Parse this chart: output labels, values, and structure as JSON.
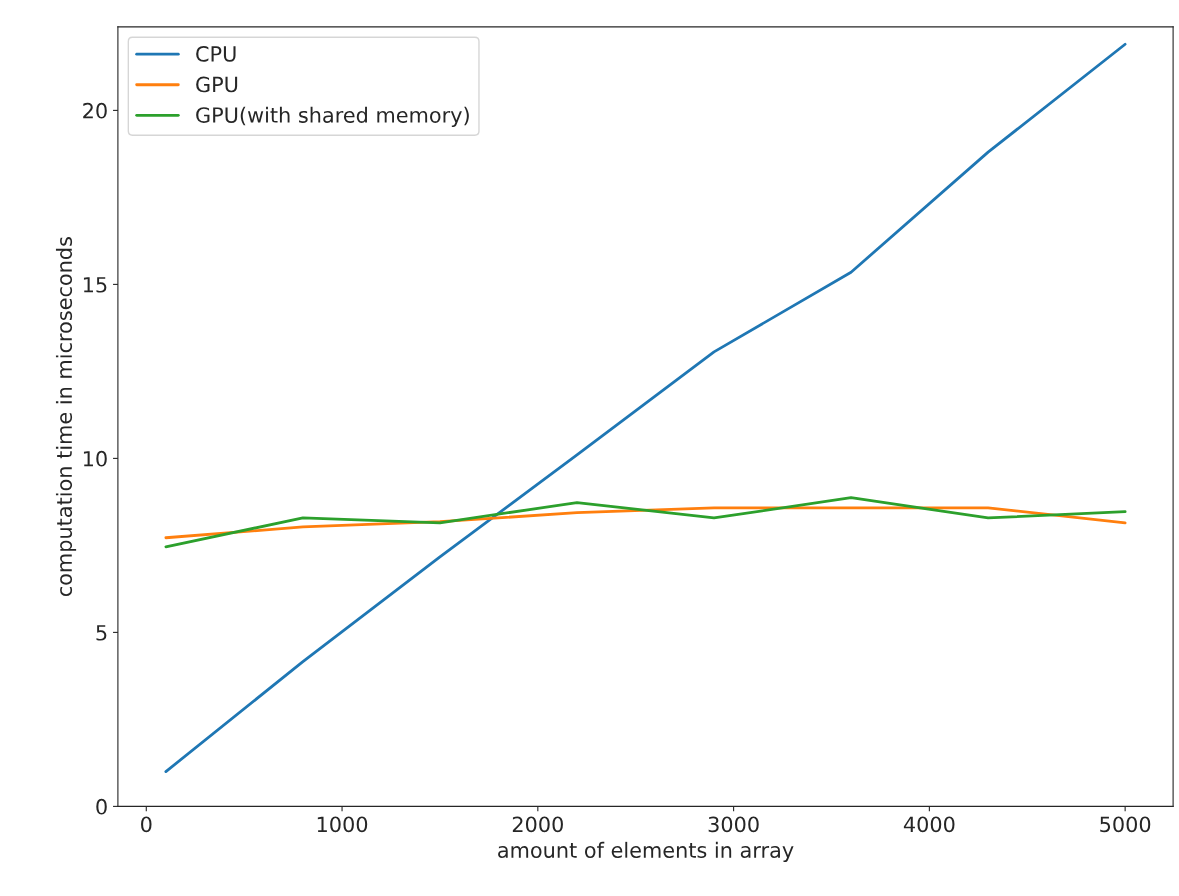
{
  "chart_data": {
    "type": "line",
    "xlabel": "amount of elements in array",
    "ylabel": "computation time in microseconds",
    "x": [
      100,
      800,
      1500,
      2200,
      2900,
      3600,
      4300,
      5000
    ],
    "series": [
      {
        "name": "CPU",
        "color": "#1f77b4",
        "values": [
          1.0,
          4.16,
          7.17,
          10.1,
          13.06,
          15.35,
          18.8,
          21.9
        ]
      },
      {
        "name": "GPU",
        "color": "#ff7f0e",
        "values": [
          7.72,
          8.03,
          8.18,
          8.44,
          8.58,
          8.58,
          8.58,
          8.15
        ]
      },
      {
        "name": "GPU(with shared memory)",
        "color": "#2ca02c",
        "values": [
          7.46,
          8.29,
          8.15,
          8.73,
          8.29,
          8.87,
          8.29,
          8.47
        ]
      }
    ],
    "xlim": [
      -145,
      5245
    ],
    "ylim": [
      0,
      22.4
    ],
    "xticks": [
      0,
      1000,
      2000,
      3000,
      4000,
      5000
    ],
    "yticks": [
      0,
      5,
      10,
      15,
      20
    ],
    "grid": false,
    "legend": "top left",
    "marker": "none",
    "line_style": "solid"
  }
}
